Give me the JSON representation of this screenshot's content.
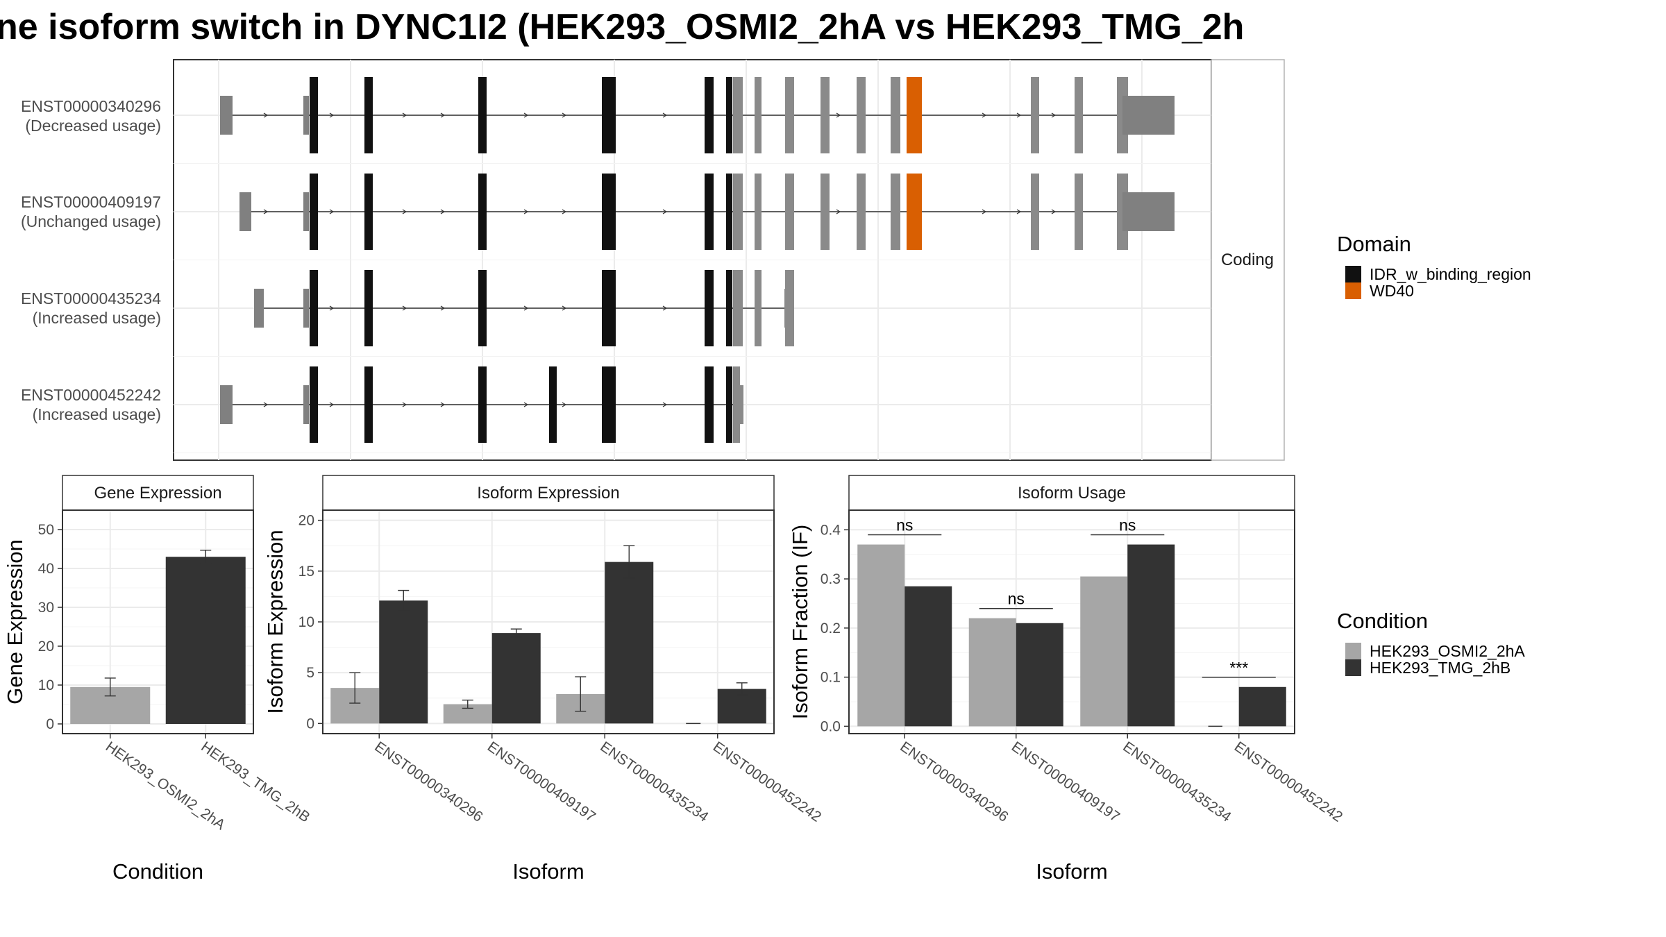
{
  "title": "ne isoform switch in DYNC1I2 (HEK293_OSMI2_2hA vs HEK293_TMG_2h",
  "colors": {
    "cond_a": "#a6a6a6",
    "cond_b": "#333333",
    "idr": "#111111",
    "wd40": "#d95f02",
    "utr": "#808080",
    "noncoding_exon": "#8a8a8a"
  },
  "transcripts": {
    "strip_label": "Coding",
    "rows": [
      {
        "id": "ENST00000340296",
        "usage": "(Decreased usage)"
      },
      {
        "id": "ENST00000409197",
        "usage": "(Unchanged usage)"
      },
      {
        "id": "ENST00000435234",
        "usage": "(Increased usage)"
      },
      {
        "id": "ENST00000452242",
        "usage": "(Increased usage)"
      }
    ]
  },
  "legend_domain": {
    "title": "Domain",
    "items": [
      {
        "label": "IDR_w_binding_region",
        "color": "#111111"
      },
      {
        "label": "WD40",
        "color": "#d95f02"
      }
    ]
  },
  "legend_condition": {
    "title": "Condition",
    "items": [
      {
        "label": "HEK293_OSMI2_2hA",
        "color": "#a6a6a6"
      },
      {
        "label": "HEK293_TMG_2hB",
        "color": "#333333"
      }
    ]
  },
  "chart_data": [
    {
      "type": "bar",
      "panel": "Gene Expression",
      "categories": [
        "HEK293_OSMI2_2hA",
        "HEK293_TMG_2hB"
      ],
      "values": [
        9.5,
        43
      ],
      "errors": [
        [
          7.2,
          11.8
        ],
        [
          41.3,
          44.7
        ]
      ],
      "xlabel": "Condition",
      "ylabel": "Gene Expression",
      "ylim": [
        -2.5,
        55
      ],
      "yticks": [
        0,
        10,
        20,
        30,
        40,
        50
      ]
    },
    {
      "type": "bar",
      "panel": "Isoform Expression",
      "categories": [
        "ENST00000340296",
        "ENST00000409197",
        "ENST00000435234",
        "ENST00000452242"
      ],
      "series": [
        {
          "name": "HEK293_OSMI2_2hA",
          "values": [
            3.5,
            1.9,
            2.9,
            0
          ],
          "errors": [
            [
              2.0,
              5.0
            ],
            [
              1.5,
              2.3
            ],
            [
              1.2,
              4.6
            ],
            [
              0,
              0
            ]
          ]
        },
        {
          "name": "HEK293_TMG_2hB",
          "values": [
            12.1,
            8.9,
            15.9,
            3.4
          ],
          "errors": [
            [
              11.1,
              13.1
            ],
            [
              8.5,
              9.3
            ],
            [
              14.3,
              17.5
            ],
            [
              2.8,
              4.0
            ]
          ]
        }
      ],
      "xlabel": "Isoform",
      "ylabel": "Isoform Expression",
      "ylim": [
        -1,
        21
      ],
      "yticks": [
        0,
        5,
        10,
        15,
        20
      ]
    },
    {
      "type": "bar",
      "panel": "Isoform Usage",
      "categories": [
        "ENST00000340296",
        "ENST00000409197",
        "ENST00000435234",
        "ENST00000452242"
      ],
      "series": [
        {
          "name": "HEK293_OSMI2_2hA",
          "values": [
            0.37,
            0.22,
            0.305,
            0
          ]
        },
        {
          "name": "HEK293_TMG_2hB",
          "values": [
            0.285,
            0.21,
            0.37,
            0.08
          ]
        }
      ],
      "significance": [
        "ns",
        "ns",
        "ns",
        "***"
      ],
      "xlabel": "Isoform",
      "ylabel": "Isoform Fraction (IF)",
      "ylim": [
        -0.015,
        0.44
      ],
      "yticks": [
        0.0,
        0.1,
        0.2,
        0.3,
        0.4
      ],
      "ytick_labels": [
        "0.0",
        "0.1",
        "0.2",
        "0.3",
        "0.4"
      ]
    }
  ]
}
